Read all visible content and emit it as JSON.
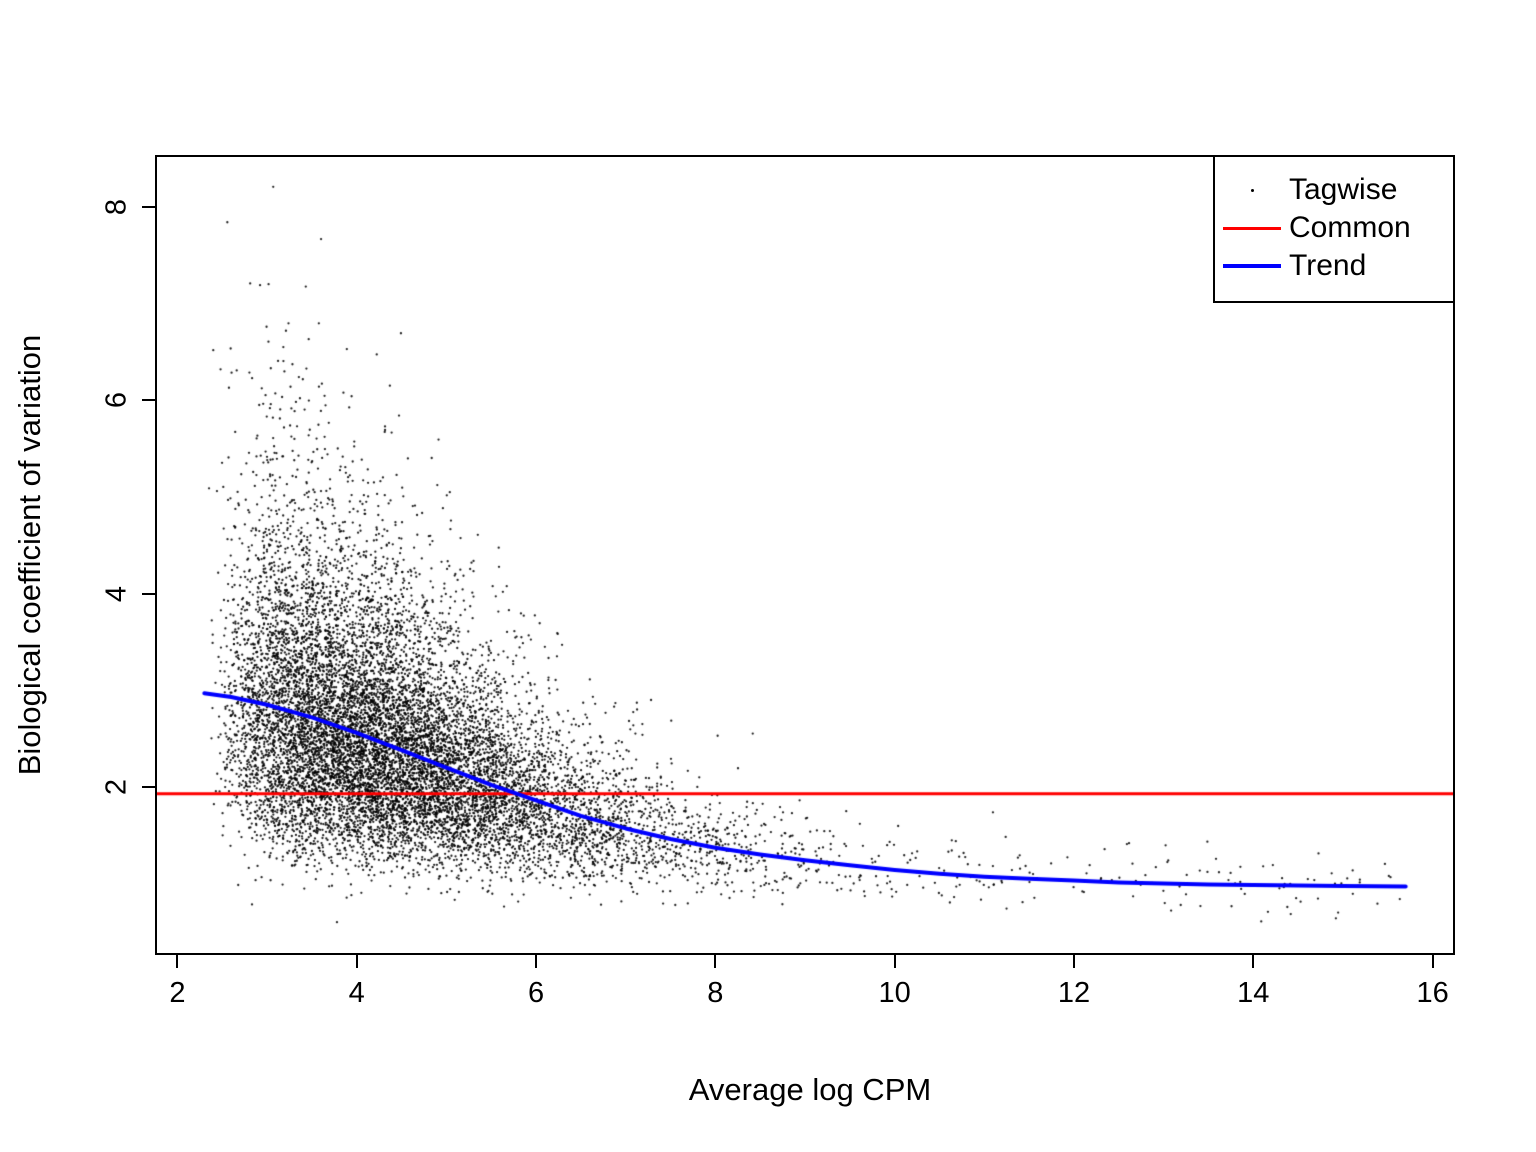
{
  "chart_data": {
    "type": "scatter",
    "title": "",
    "xlabel": "Average log CPM",
    "ylabel": "Biological coefficient of variation",
    "x_ticks": [
      2,
      4,
      6,
      8,
      10,
      12,
      14,
      16
    ],
    "y_ticks": [
      2,
      4,
      6,
      8
    ],
    "xlim": [
      1.75,
      16.25
    ],
    "ylim": [
      0.26,
      8.54
    ],
    "grid": false,
    "legend": {
      "position": "top-right",
      "entries": [
        {
          "label": "Tagwise",
          "type": "point",
          "color": "#000000"
        },
        {
          "label": "Common",
          "type": "line",
          "color": "#ff0000",
          "width": 3
        },
        {
          "label": "Trend",
          "type": "line",
          "color": "#0000ff",
          "width": 4
        }
      ]
    },
    "common_line": {
      "color": "#ff0000",
      "y": 1.93,
      "width": 3
    },
    "trend_line": {
      "color": "#0000ff",
      "width": 4,
      "points": [
        [
          2.3,
          2.97
        ],
        [
          2.6,
          2.93
        ],
        [
          3.0,
          2.85
        ],
        [
          3.5,
          2.72
        ],
        [
          4.0,
          2.56
        ],
        [
          4.5,
          2.38
        ],
        [
          5.0,
          2.2
        ],
        [
          5.5,
          2.02
        ],
        [
          6.0,
          1.86
        ],
        [
          6.5,
          1.7
        ],
        [
          7.0,
          1.57
        ],
        [
          7.5,
          1.46
        ],
        [
          8.0,
          1.37
        ],
        [
          8.5,
          1.3
        ],
        [
          9.0,
          1.24
        ],
        [
          9.5,
          1.19
        ],
        [
          10.0,
          1.14
        ],
        [
          10.5,
          1.1
        ],
        [
          11.0,
          1.07
        ],
        [
          11.5,
          1.05
        ],
        [
          12.0,
          1.03
        ],
        [
          12.5,
          1.01
        ],
        [
          13.0,
          1.0
        ],
        [
          13.5,
          0.99
        ],
        [
          14.0,
          0.985
        ],
        [
          14.5,
          0.98
        ],
        [
          15.0,
          0.975
        ],
        [
          15.7,
          0.97
        ]
      ]
    },
    "tagwise_points": {
      "color": "#000000",
      "count": 12000,
      "seed": 42,
      "x_range": [
        2.3,
        15.7
      ],
      "y_range": [
        0.55,
        8.3
      ],
      "model": "lognormal scatter around trend_line; x ~ 2.3 + Gamma(shape=3, scale=0.75) with 1.5% uniform tail on [7,15.7]; sigma tapers 0.34 -> 0.18 as x goes 3 -> 9"
    }
  }
}
